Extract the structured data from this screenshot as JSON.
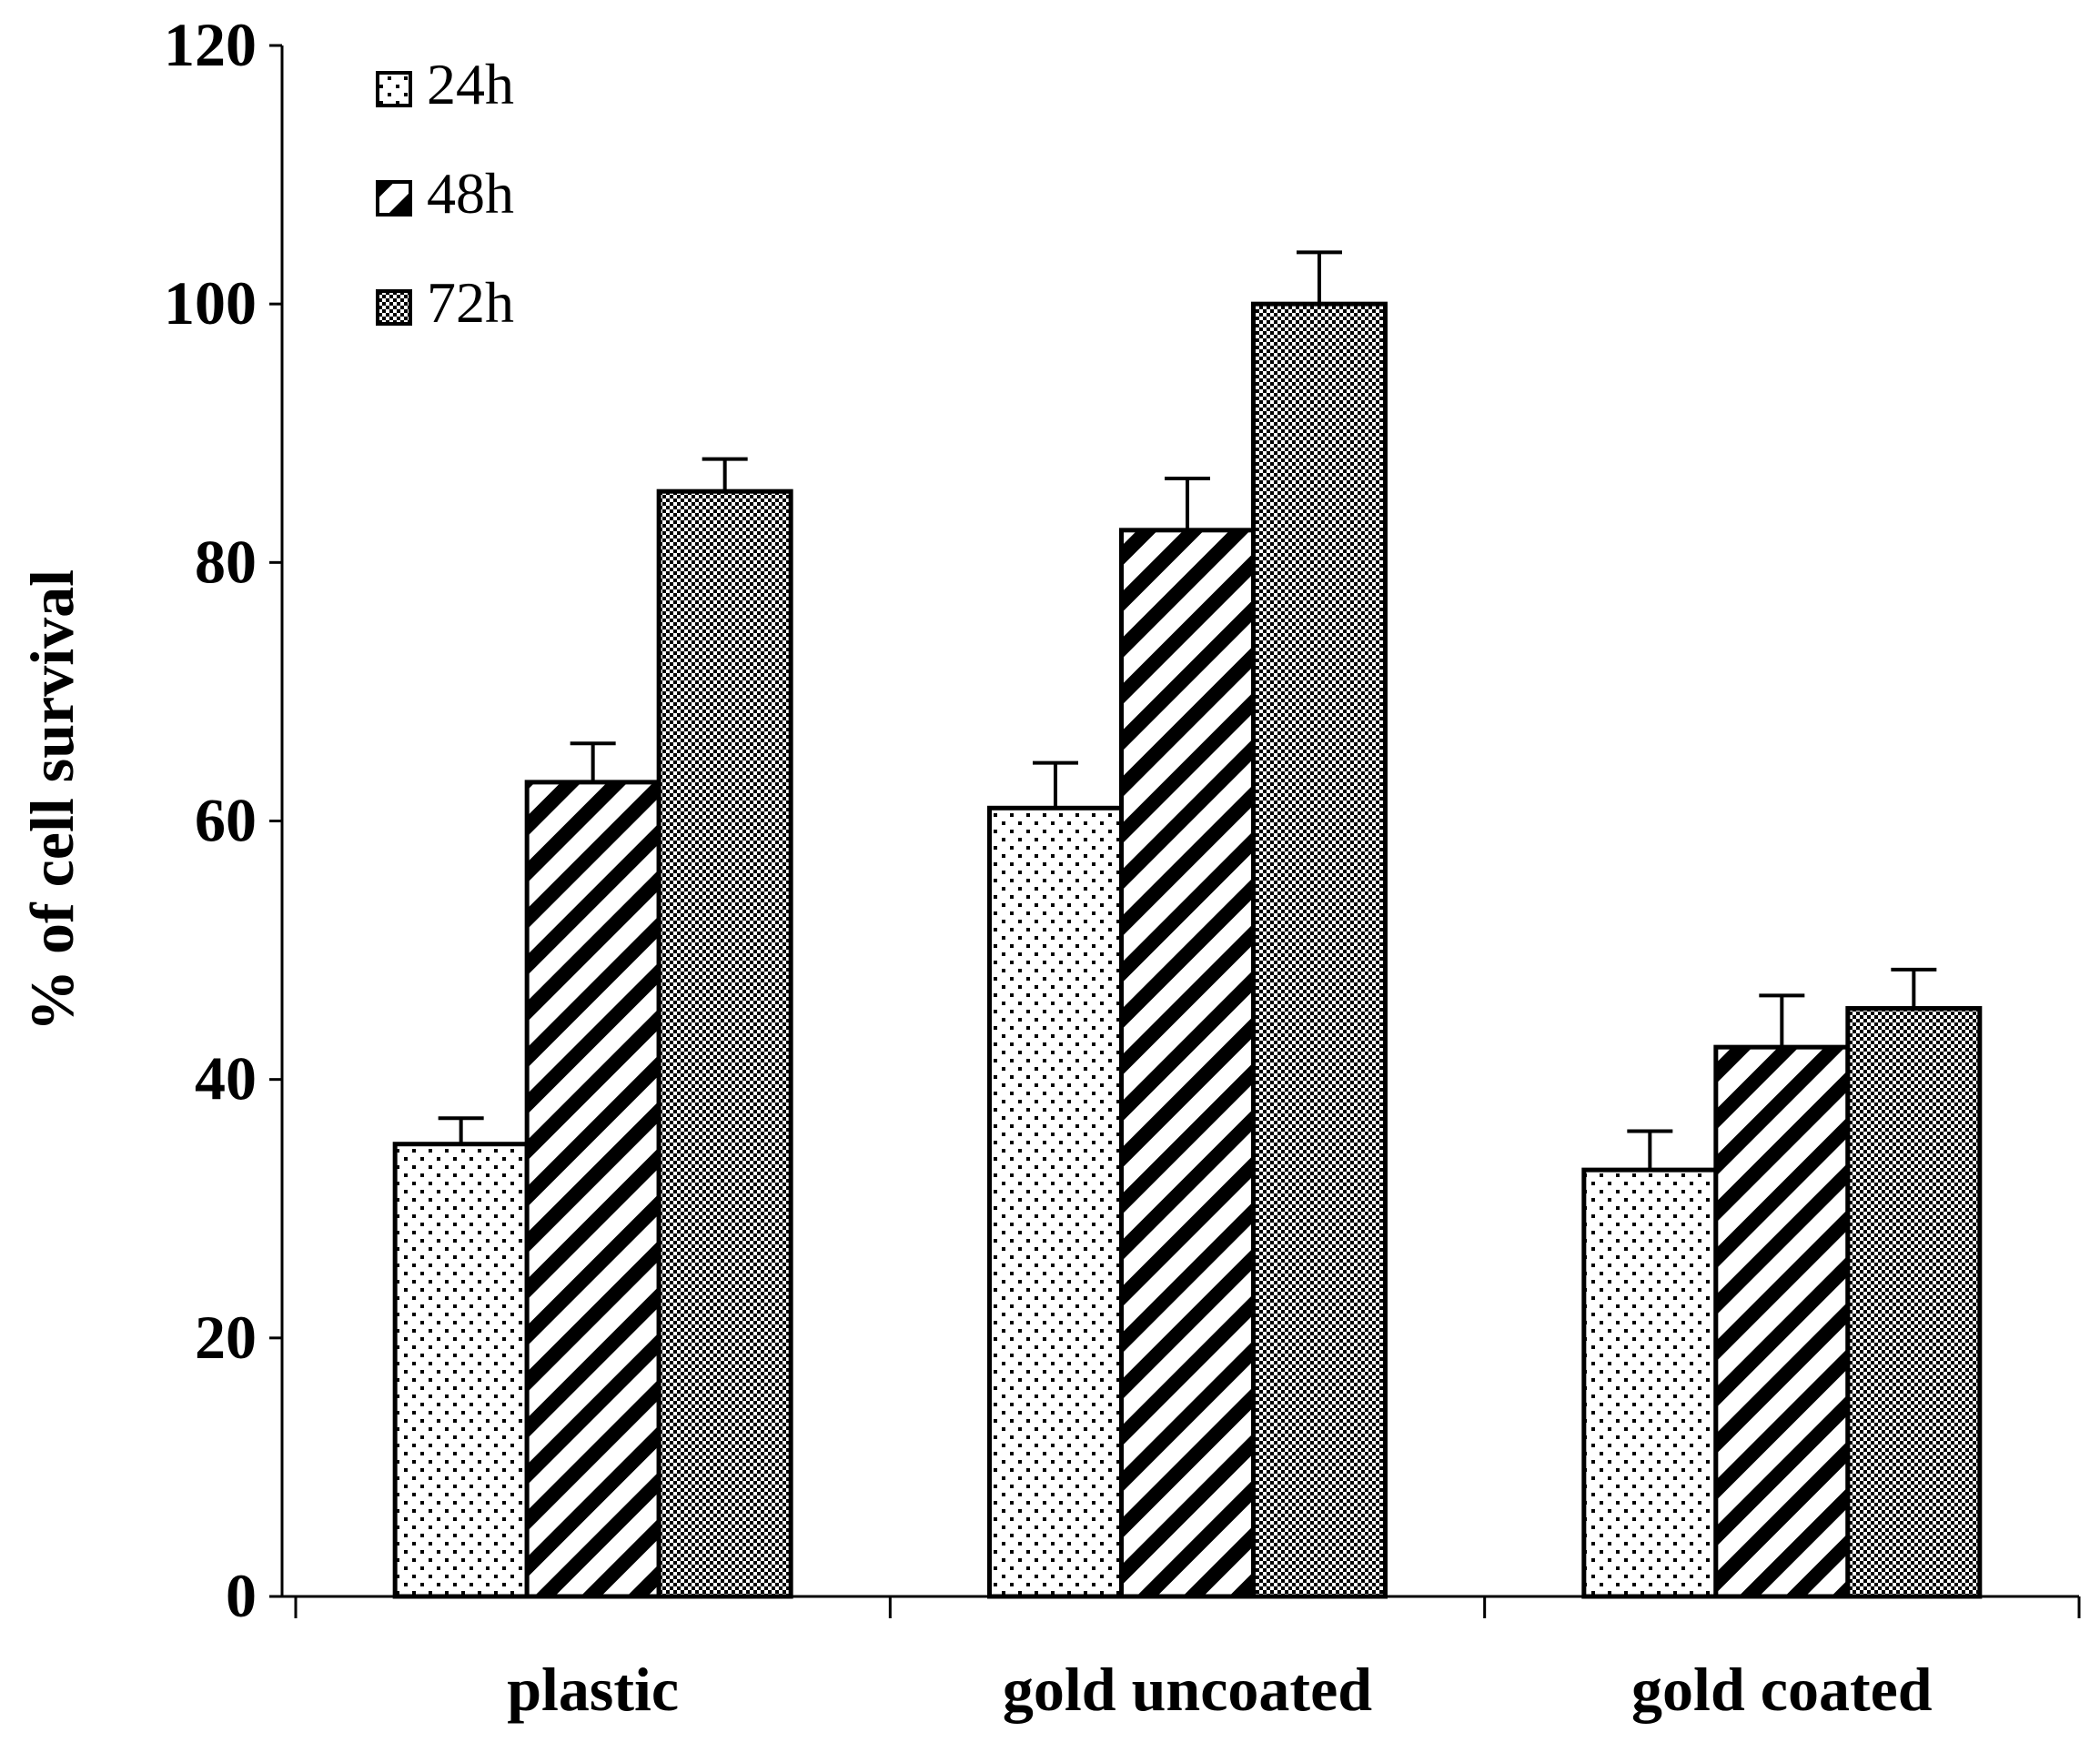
{
  "chart_data": {
    "type": "bar",
    "title": "",
    "xlabel": "",
    "ylabel": "% of cell survival",
    "ylim": [
      0,
      120
    ],
    "yticks": [
      0,
      20,
      40,
      60,
      80,
      100,
      120
    ],
    "categories": [
      "plastic",
      "gold uncoated",
      "gold coated"
    ],
    "series": [
      {
        "name": "24h",
        "pattern": "dots",
        "values": [
          35,
          61,
          33
        ],
        "errors": [
          2,
          3.5,
          3
        ]
      },
      {
        "name": "48h",
        "pattern": "diagonal-stripes",
        "values": [
          63,
          82.5,
          42.5
        ],
        "errors": [
          3,
          4,
          4
        ]
      },
      {
        "name": "72h",
        "pattern": "dense-checker",
        "values": [
          85.5,
          100,
          45.5
        ],
        "errors": [
          2.5,
          4,
          3
        ]
      }
    ],
    "legend_position": "top-left",
    "grid": false
  }
}
